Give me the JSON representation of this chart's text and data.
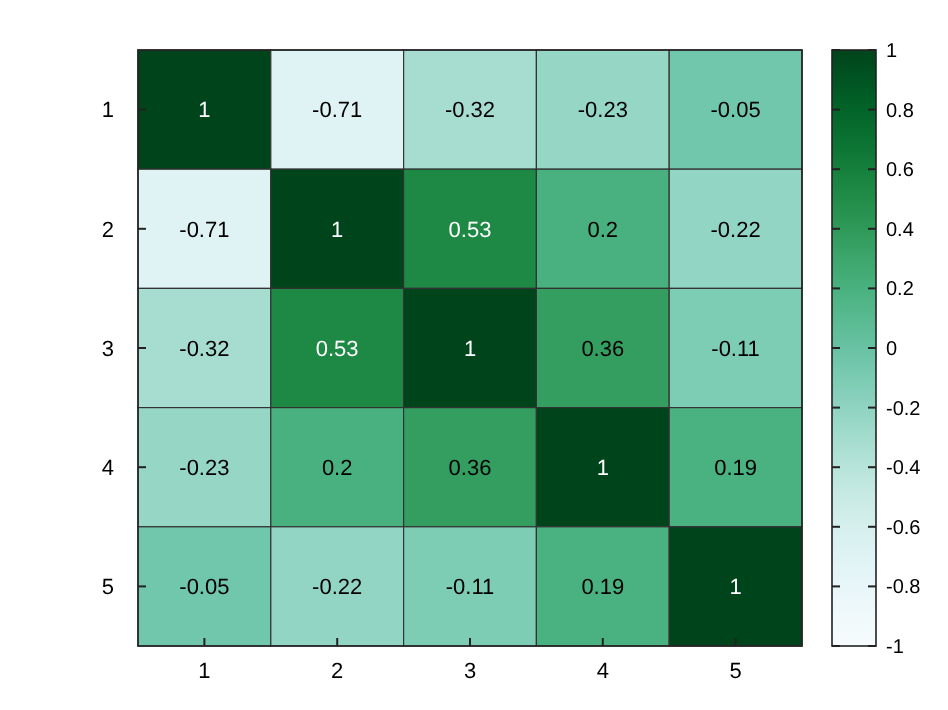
{
  "chart_data": {
    "type": "heatmap",
    "categories": [
      "1",
      "2",
      "3",
      "4",
      "5"
    ],
    "y_categories": [
      "1",
      "2",
      "3",
      "4",
      "5"
    ],
    "cells": [
      [
        1,
        -0.71,
        -0.32,
        -0.23,
        -0.05
      ],
      [
        -0.71,
        1,
        0.53,
        0.2,
        -0.22
      ],
      [
        -0.32,
        0.53,
        1,
        0.36,
        -0.11
      ],
      [
        -0.23,
        0.2,
        0.36,
        1,
        0.19
      ],
      [
        -0.05,
        -0.22,
        -0.11,
        0.19,
        1
      ]
    ],
    "data_labels": true,
    "clim": [
      -1,
      1
    ],
    "cticks": [
      -1,
      -0.8,
      -0.6,
      -0.4,
      -0.2,
      0,
      0.2,
      0.4,
      0.6,
      0.8,
      1
    ]
  }
}
